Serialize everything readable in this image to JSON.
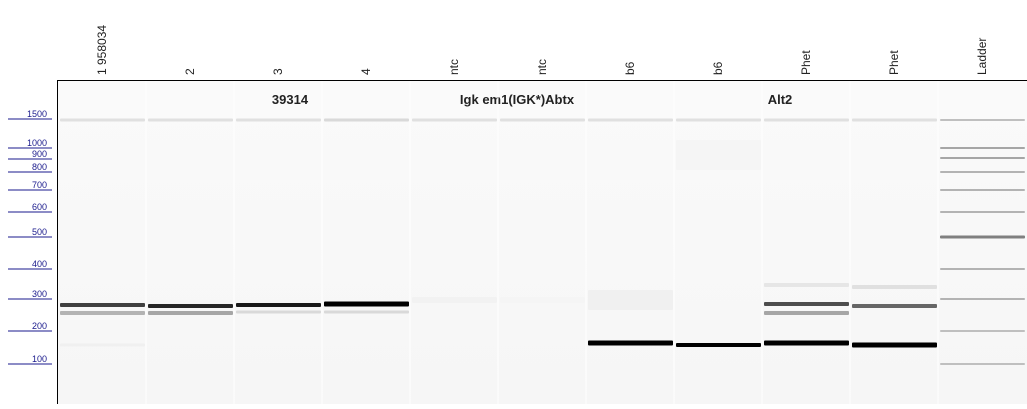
{
  "lanes": [
    "1 958034",
    "2",
    "3",
    "4",
    "ntc",
    "ntc",
    "b6",
    "b6",
    "Phet",
    "Phet",
    "Ladder"
  ],
  "groups": [
    "39314",
    "Igk em1(IGK*)Abtx",
    "Alt2"
  ],
  "markers": [
    "1500",
    "1000",
    "900",
    "800",
    "700",
    "600",
    "500",
    "400",
    "300",
    "200",
    "100"
  ]
}
